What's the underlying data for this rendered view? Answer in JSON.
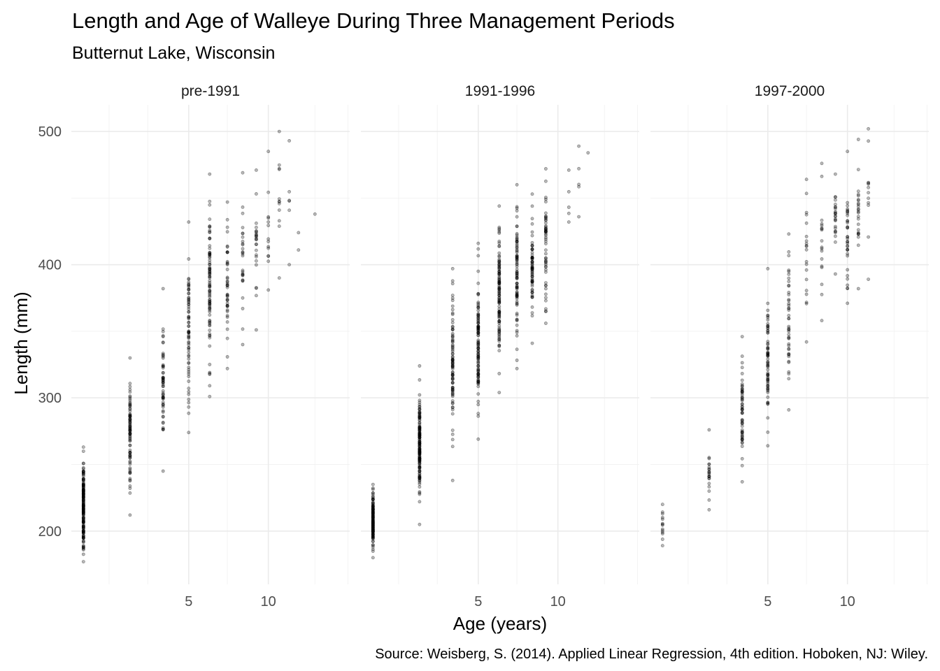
{
  "chart_data": {
    "type": "scatter",
    "title": "Length and Age of Walleye During Three Management Periods",
    "subtitle": "Butternut Lake, Wisconsin",
    "xlabel": "Age (years)",
    "ylabel": "Length (mm)",
    "caption": "Source: Weisberg, S. (2014). Applied Linear Regression, 4th edition. Hoboken, NJ: Wiley.",
    "x_scale": "log10",
    "xlim": [
      1.8,
      20.3
    ],
    "ylim": [
      160,
      520
    ],
    "x_ticks": [
      5,
      10
    ],
    "x_tick_labels": [
      "5",
      "10"
    ],
    "y_ticks": [
      200,
      300,
      400,
      500
    ],
    "y_tick_labels": [
      "200",
      "300",
      "400",
      "500"
    ],
    "legend": "none",
    "grid": true,
    "point_alpha": 0.3,
    "panels": [
      {
        "label": "pre-1991",
        "groups": [
          {
            "age": 2,
            "n": 180,
            "min": 177,
            "max": 263
          },
          {
            "age": 3,
            "n": 90,
            "min": 212,
            "max": 330
          },
          {
            "age": 4,
            "n": 60,
            "min": 245,
            "max": 382
          },
          {
            "age": 5,
            "n": 70,
            "min": 274,
            "max": 432
          },
          {
            "age": 6,
            "n": 90,
            "min": 301,
            "max": 468
          },
          {
            "age": 7,
            "n": 45,
            "min": 322,
            "max": 447
          },
          {
            "age": 8,
            "n": 28,
            "min": 340,
            "max": 469
          },
          {
            "age": 9,
            "n": 25,
            "min": 351,
            "max": 471
          },
          {
            "age": 10,
            "n": 14,
            "min": 381,
            "max": 485
          },
          {
            "age": 11,
            "n": 12,
            "min": 390,
            "max": 500
          },
          {
            "age": 12,
            "n": 6,
            "min": 400,
            "max": 493
          },
          {
            "age": 13,
            "n": 2,
            "min": 411,
            "max": 424
          },
          {
            "age": 15,
            "n": 1,
            "min": 438,
            "max": 438
          }
        ]
      },
      {
        "label": "1991-1996",
        "groups": [
          {
            "age": 2,
            "n": 150,
            "min": 180,
            "max": 235
          },
          {
            "age": 3,
            "n": 160,
            "min": 205,
            "max": 324
          },
          {
            "age": 4,
            "n": 90,
            "min": 238,
            "max": 397
          },
          {
            "age": 5,
            "n": 110,
            "min": 269,
            "max": 416
          },
          {
            "age": 6,
            "n": 110,
            "min": 304,
            "max": 444
          },
          {
            "age": 7,
            "n": 85,
            "min": 322,
            "max": 460
          },
          {
            "age": 8,
            "n": 70,
            "min": 341,
            "max": 453
          },
          {
            "age": 9,
            "n": 55,
            "min": 356,
            "max": 472
          },
          {
            "age": 11,
            "n": 5,
            "min": 432,
            "max": 471
          },
          {
            "age": 12,
            "n": 5,
            "min": 436,
            "max": 489
          },
          {
            "age": 13,
            "n": 1,
            "min": 484,
            "max": 484
          }
        ]
      },
      {
        "label": "1997-2000",
        "groups": [
          {
            "age": 2,
            "n": 14,
            "min": 189,
            "max": 220
          },
          {
            "age": 3,
            "n": 22,
            "min": 216,
            "max": 276
          },
          {
            "age": 4,
            "n": 60,
            "min": 237,
            "max": 346
          },
          {
            "age": 5,
            "n": 70,
            "min": 264,
            "max": 397
          },
          {
            "age": 6,
            "n": 45,
            "min": 291,
            "max": 423
          },
          {
            "age": 7,
            "n": 20,
            "min": 342,
            "max": 464
          },
          {
            "age": 8,
            "n": 18,
            "min": 358,
            "max": 476
          },
          {
            "age": 9,
            "n": 25,
            "min": 393,
            "max": 468
          },
          {
            "age": 10,
            "n": 35,
            "min": 371,
            "max": 485
          },
          {
            "age": 11,
            "n": 25,
            "min": 382,
            "max": 494
          },
          {
            "age": 12,
            "n": 12,
            "min": 389,
            "max": 502
          }
        ]
      }
    ]
  }
}
